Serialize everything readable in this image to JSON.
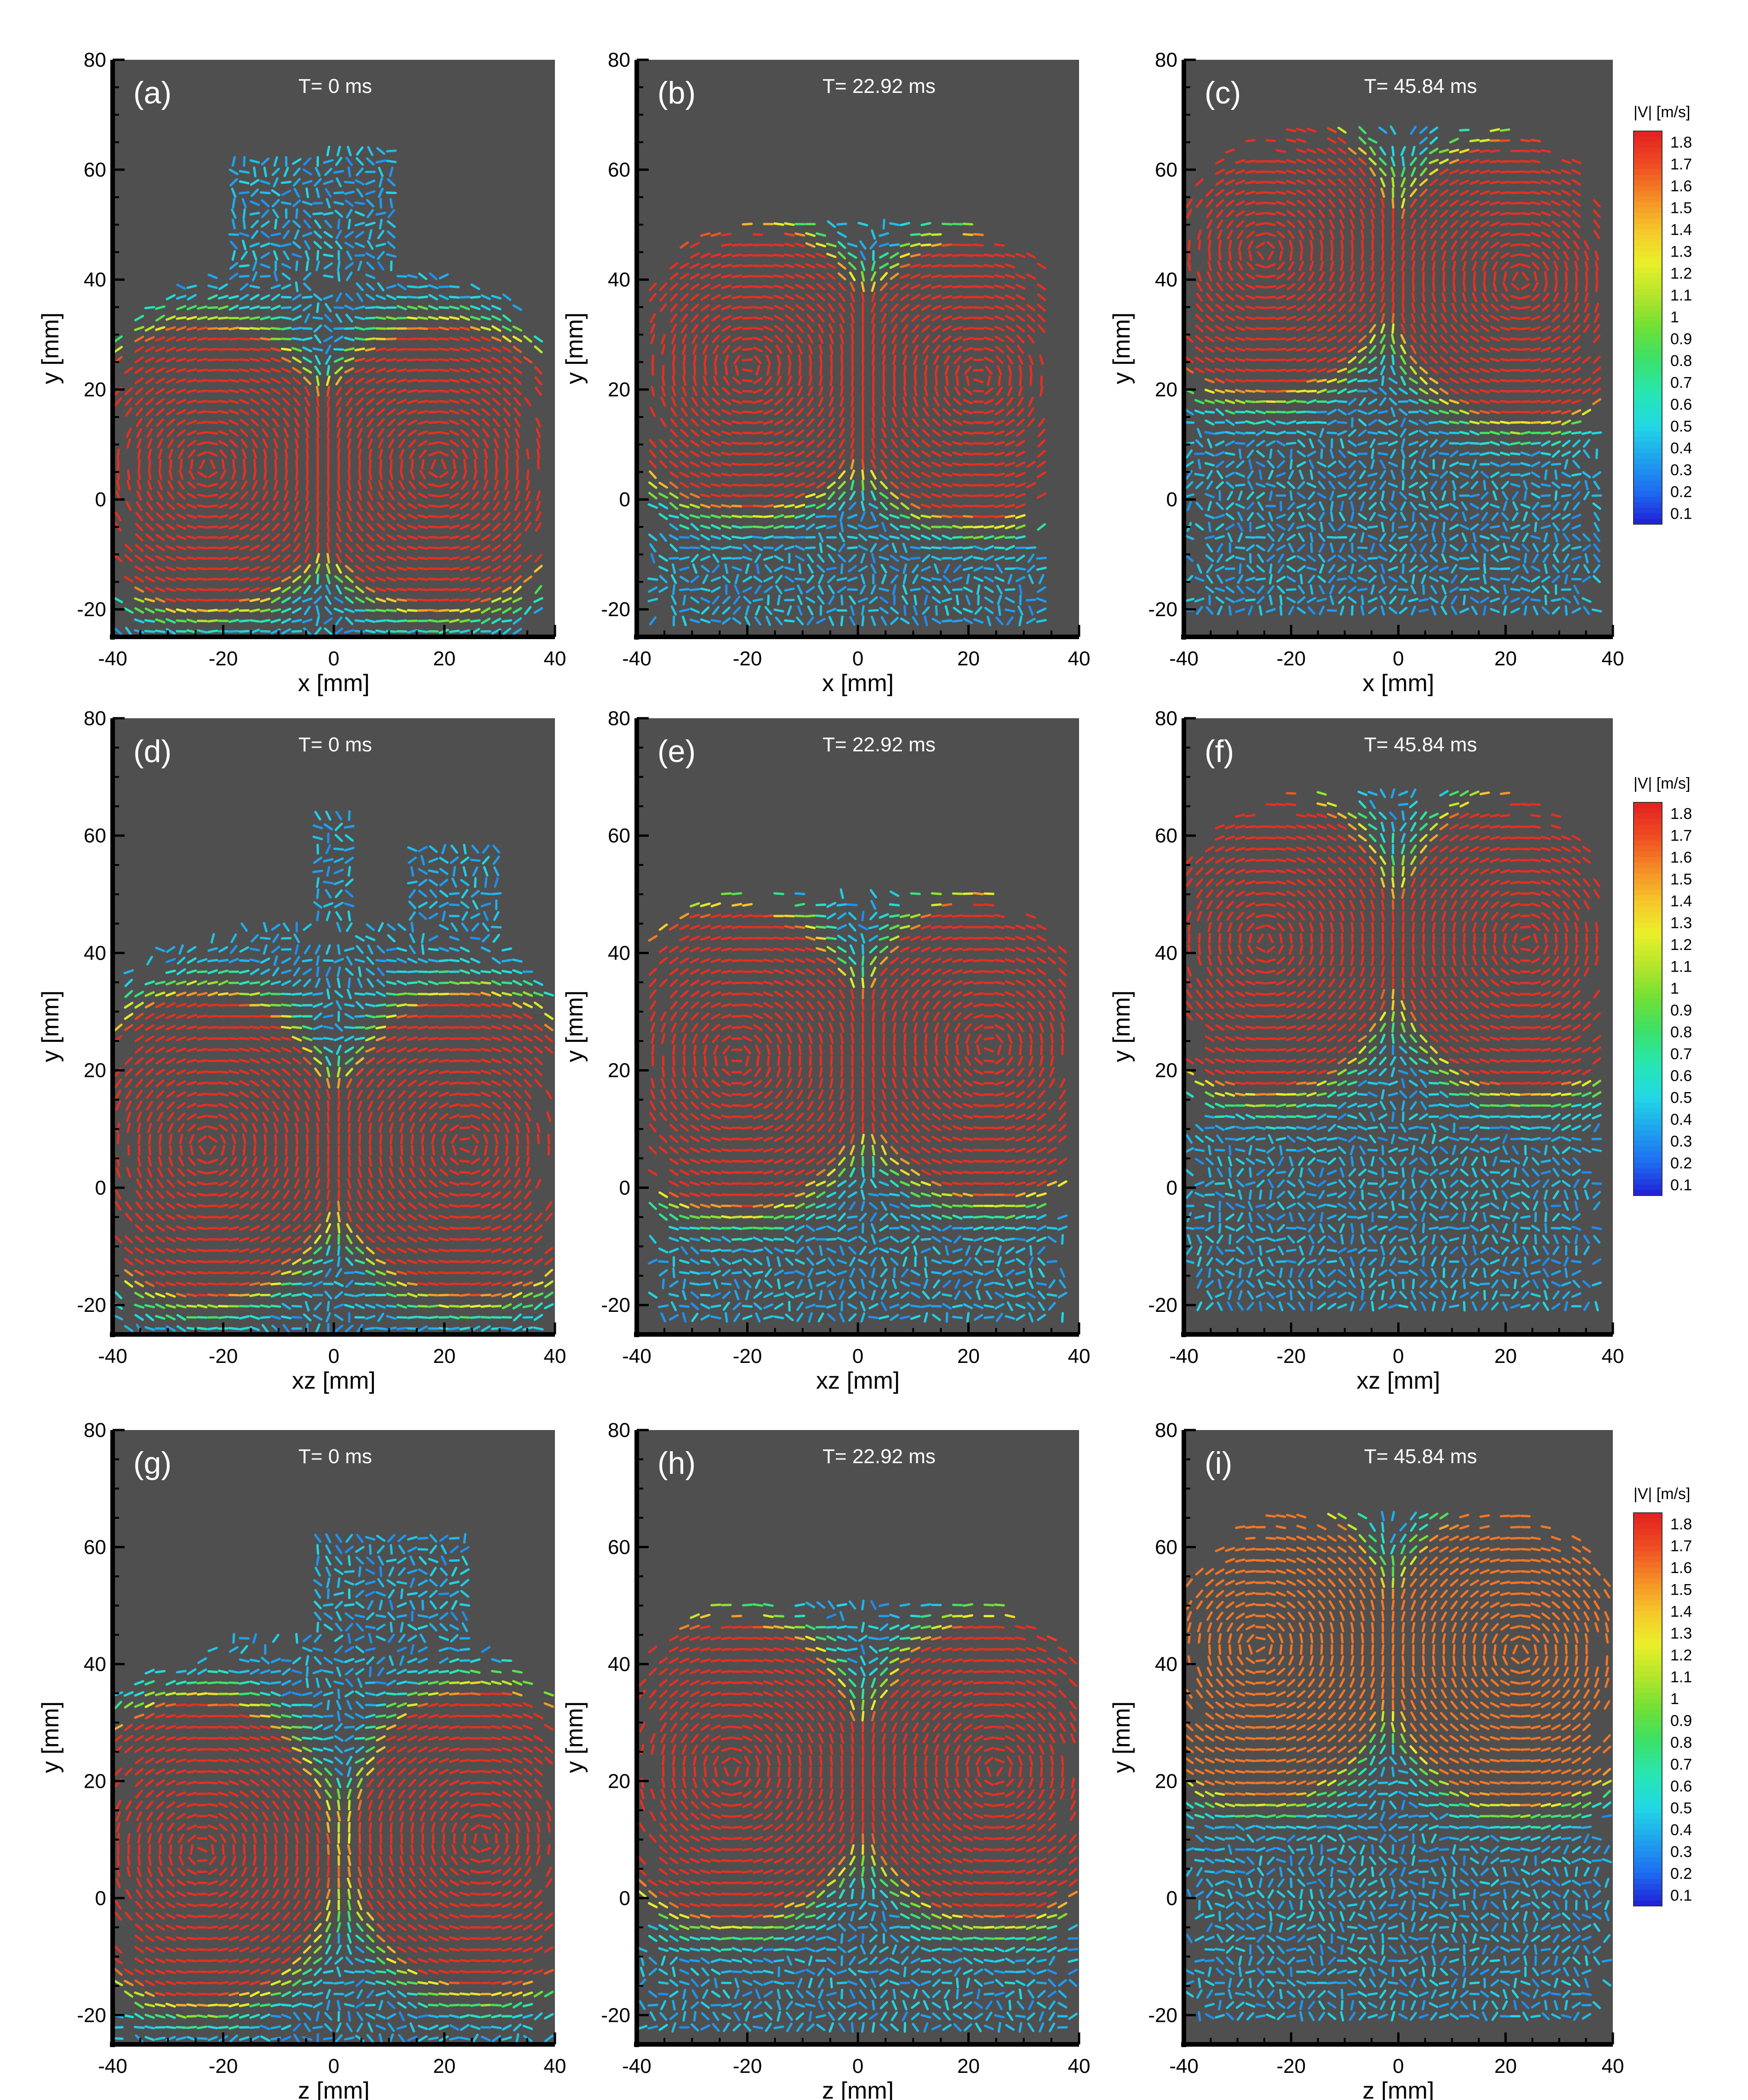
{
  "chart_data": {
    "type": "vector_field",
    "description_levels": "velocity magnitude |V| colored vectors",
    "panels": [
      {
        "label": "(a)",
        "time": "T= 0 ms",
        "xlabel": "x [mm]",
        "ylabel": "y [mm]",
        "xlim": [
          -40,
          40
        ],
        "ylim": [
          -25,
          80
        ],
        "xticks": [
          -40,
          -20,
          0,
          20,
          40
        ],
        "yticks": [
          -20,
          0,
          20,
          40,
          60,
          80
        ],
        "core": {
          "cx": -3,
          "cy": 12,
          "w": 28,
          "h": 20,
          "peak": 1.8
        },
        "vortices": [
          [
            -23,
            6
          ],
          [
            19,
            6
          ]
        ],
        "extent": {
          "xmin": -39,
          "xmax": 38,
          "ymin": -24,
          "ymax": 42,
          "spikes": [
            [
              -20,
              10,
              40,
              62
            ],
            [
              -2,
              12,
              40,
              65
            ]
          ]
        }
      },
      {
        "label": "(b)",
        "time": "T= 22.92 ms",
        "xlabel": "x [mm]",
        "ylabel": "y [mm]",
        "xlim": [
          -40,
          40
        ],
        "ylim": [
          -25,
          80
        ],
        "xticks": [
          -40,
          -20,
          0,
          20,
          40
        ],
        "yticks": [
          -20,
          0,
          20,
          40,
          60,
          80
        ],
        "core": {
          "cx": 0,
          "cy": 29,
          "w": 30,
          "h": 16,
          "peak": 1.8
        },
        "vortices": [
          [
            -20,
            24
          ],
          [
            22,
            22
          ]
        ],
        "extent": {
          "xmin": -38,
          "xmax": 34,
          "ymin": -23,
          "ymax": 52,
          "spikes": []
        }
      },
      {
        "label": "(c)",
        "time": "T= 45.84 ms",
        "xlabel": "x [mm]",
        "ylabel": "y [mm]",
        "xlim": [
          -40,
          40
        ],
        "ylim": [
          -25,
          80
        ],
        "xticks": [
          -40,
          -20,
          0,
          20,
          40
        ],
        "yticks": [
          -20,
          0,
          20,
          40,
          60,
          80
        ],
        "core": {
          "cx": 0,
          "cy": 43,
          "w": 30,
          "h": 16,
          "peak": 1.8
        },
        "vortices": [
          [
            -25,
            45
          ],
          [
            23,
            40
          ]
        ],
        "extent": {
          "xmin": -39,
          "xmax": 38,
          "ymin": -22,
          "ymax": 68,
          "spikes": []
        }
      },
      {
        "label": "(d)",
        "time": "T= 0 ms",
        "xlabel": "xz [mm]",
        "ylabel": "y [mm]",
        "xlim": [
          -40,
          40
        ],
        "ylim": [
          -25,
          80
        ],
        "xticks": [
          -40,
          -20,
          0,
          20,
          40
        ],
        "yticks": [
          -20,
          0,
          20,
          40,
          60,
          80
        ],
        "core": {
          "cx": -3,
          "cy": 11,
          "w": 32,
          "h": 22,
          "peak": 1.8
        },
        "vortices": [
          [
            -23,
            7
          ],
          [
            24,
            7
          ]
        ],
        "extent": {
          "xmin": -39,
          "xmax": 39,
          "ymin": -24,
          "ymax": 45,
          "spikes": [
            [
              -4,
              4,
              40,
              65
            ],
            [
              14,
              30,
              40,
              58
            ]
          ]
        }
      },
      {
        "label": "(e)",
        "time": "T= 22.92 ms",
        "xlabel": "xz [mm]",
        "ylabel": "y [mm]",
        "xlim": [
          -40,
          40
        ],
        "ylim": [
          -25,
          80
        ],
        "xticks": [
          -40,
          -20,
          0,
          20,
          40
        ],
        "yticks": [
          -20,
          0,
          20,
          40,
          60,
          80
        ],
        "core": {
          "cx": 0,
          "cy": 29,
          "w": 32,
          "h": 18,
          "peak": 1.8
        },
        "vortices": [
          [
            -22,
            22
          ],
          [
            24,
            24
          ]
        ],
        "extent": {
          "xmin": -38,
          "xmax": 38,
          "ymin": -23,
          "ymax": 52,
          "spikes": []
        }
      },
      {
        "label": "(f)",
        "time": "T= 45.84 ms",
        "xlabel": "xz [mm]",
        "ylabel": "y [mm]",
        "xlim": [
          -40,
          40
        ],
        "ylim": [
          -25,
          80
        ],
        "xticks": [
          -40,
          -20,
          0,
          20,
          40
        ],
        "yticks": [
          -20,
          0,
          20,
          40,
          60,
          80
        ],
        "core": {
          "cx": 0,
          "cy": 44,
          "w": 30,
          "h": 16,
          "peak": 1.8
        },
        "vortices": [
          [
            -25,
            42
          ],
          [
            24,
            42
          ]
        ],
        "extent": {
          "xmin": -39,
          "xmax": 38,
          "ymin": -22,
          "ymax": 68,
          "spikes": []
        }
      },
      {
        "label": "(g)",
        "time": "T= 0 ms",
        "xlabel": "z [mm]",
        "ylabel": "y [mm]",
        "xlim": [
          -40,
          40
        ],
        "ylim": [
          -25,
          80
        ],
        "xticks": [
          -40,
          -20,
          0,
          20,
          40
        ],
        "yticks": [
          -20,
          0,
          20,
          40,
          60,
          80
        ],
        "core": {
          "cx": 2,
          "cy": 13,
          "w": 32,
          "h": 18,
          "peak": 1.8
        },
        "vortices": [
          [
            -24,
            8
          ],
          [
            27,
            10
          ]
        ],
        "extent": {
          "xmin": -39,
          "xmax": 39,
          "ymin": -24,
          "ymax": 45,
          "spikes": [
            [
              -3,
              25,
              45,
              62
            ]
          ]
        }
      },
      {
        "label": "(h)",
        "time": "T= 22.92 ms",
        "xlabel": "z [mm]",
        "ylabel": "y [mm]",
        "xlim": [
          -40,
          40
        ],
        "ylim": [
          -25,
          80
        ],
        "xticks": [
          -40,
          -20,
          0,
          20,
          40
        ],
        "yticks": [
          -20,
          0,
          20,
          40,
          60,
          80
        ],
        "core": {
          "cx": -2,
          "cy": 28,
          "w": 28,
          "h": 16,
          "peak": 1.8
        },
        "vortices": [
          [
            -23,
            22
          ],
          [
            25,
            22
          ]
        ],
        "extent": {
          "xmin": -39,
          "xmax": 39,
          "ymin": -23,
          "ymax": 52,
          "spikes": []
        }
      },
      {
        "label": "(i)",
        "time": "T= 45.84 ms",
        "xlabel": "z [mm]",
        "ylabel": "y [mm]",
        "xlim": [
          -40,
          40
        ],
        "ylim": [
          -25,
          80
        ],
        "xticks": [
          -40,
          -20,
          0,
          20,
          40
        ],
        "yticks": [
          -20,
          0,
          20,
          40,
          60,
          80
        ],
        "core": {
          "cx": 1,
          "cy": 44,
          "w": 26,
          "h": 16,
          "peak": 1.6
        },
        "vortices": [
          [
            -26,
            43
          ],
          [
            23,
            42
          ]
        ],
        "extent": {
          "xmin": -39,
          "xmax": 39,
          "ymin": -22,
          "ymax": 67,
          "spikes": []
        }
      }
    ],
    "colorbar": {
      "title": "|V| [m/s]",
      "ticks": [
        "1.8",
        "1.7",
        "1.6",
        "1.5",
        "1.4",
        "1.3",
        "1.2",
        "1.1",
        "1",
        "0.9",
        "0.8",
        "0.7",
        "0.6",
        "0.5",
        "0.4",
        "0.3",
        "0.2",
        "0.1"
      ],
      "range": [
        0.05,
        1.85
      ],
      "colors": [
        "#1f1fd6",
        "#1e6cf0",
        "#1fa3ee",
        "#22d8e4",
        "#27e6b3",
        "#3ae06a",
        "#6fe036",
        "#b5e52b",
        "#eaf02a",
        "#f6c52a",
        "#f48a26",
        "#ee4a22",
        "#e22121"
      ]
    },
    "background_color": "#4f4f4f"
  }
}
